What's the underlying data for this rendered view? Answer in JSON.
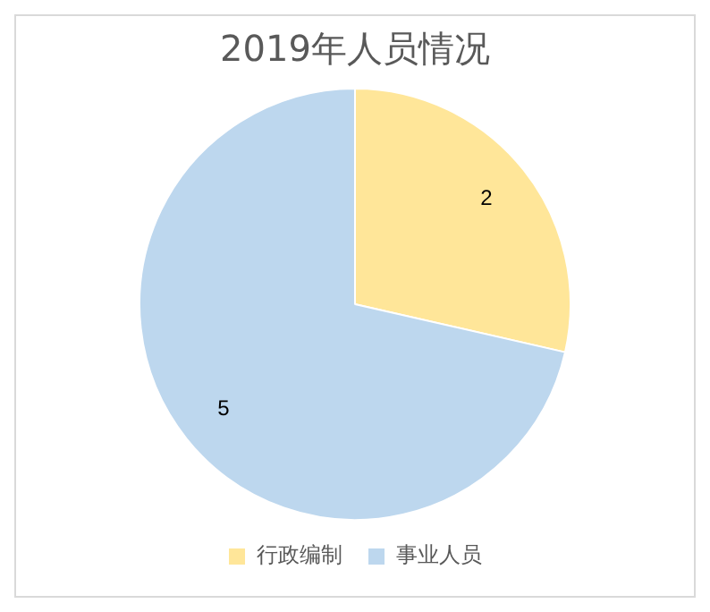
{
  "chart_data": {
    "type": "pie",
    "title": "2019年人员情况",
    "categories": [
      "行政编制",
      "事业人员"
    ],
    "values": [
      2,
      5
    ],
    "colors": [
      "#ffe699",
      "#bdd7ee"
    ],
    "data_labels": true,
    "legend": "bottom"
  }
}
